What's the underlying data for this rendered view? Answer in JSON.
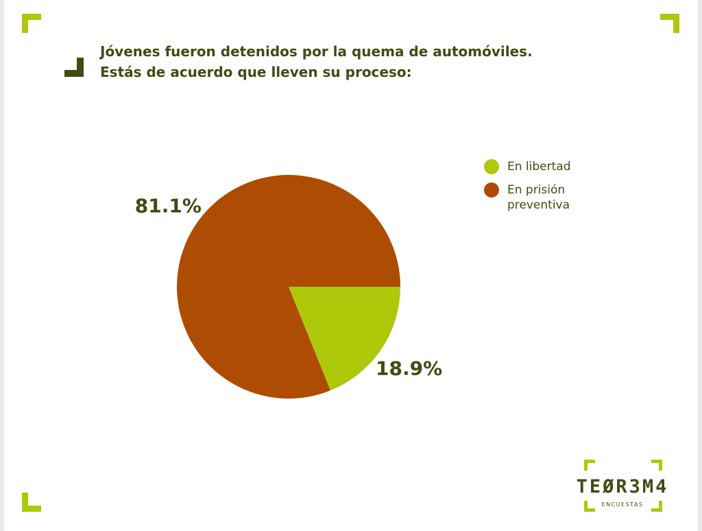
{
  "chart_data": {
    "type": "pie",
    "title_lines": [
      "Jóvenes fueron detenidos por la quema de automóviles.",
      "Estás de acuerdo que lleven su proceso:"
    ],
    "categories": [
      "En libertad",
      "En prisión preventiva"
    ],
    "values": [
      18.9,
      81.1
    ],
    "value_labels": [
      "18.9%",
      "81.1%"
    ],
    "colors": [
      "#aec80a",
      "#ad4c02"
    ],
    "legend": "right"
  },
  "logo": {
    "name": "TEØR3M4",
    "tagline": "ENCUESTAS"
  }
}
